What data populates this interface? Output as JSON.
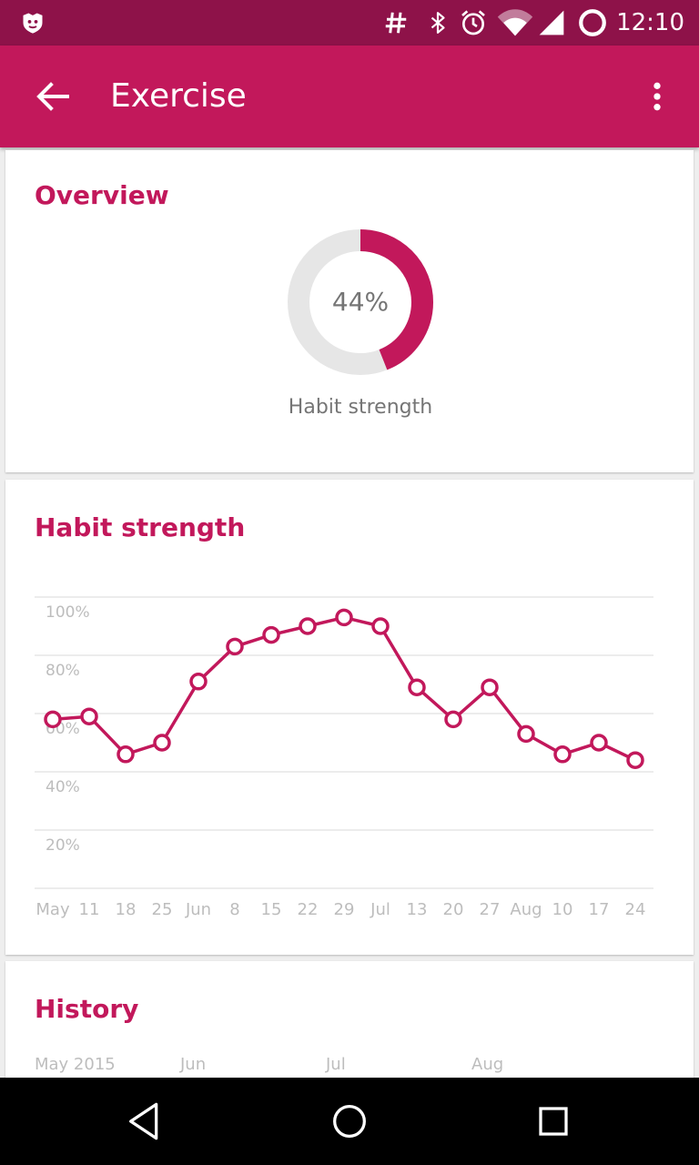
{
  "status_bar": {
    "time": "12:10",
    "icons": [
      "app-notification-icon",
      "hashtag-icon",
      "bluetooth-icon",
      "alarm-icon",
      "wifi-icon",
      "signal-icon",
      "battery-icon"
    ]
  },
  "app_bar": {
    "title": "Exercise",
    "back_icon": "arrow-back-icon",
    "menu_icon": "more-vert-icon"
  },
  "overview": {
    "title": "Overview",
    "score_value": 44,
    "score_text": "44%",
    "score_label": "Habit strength"
  },
  "habit_strength": {
    "title": "Habit strength"
  },
  "history": {
    "title": "History",
    "months": [
      "May 2015",
      "Jun",
      "Jul",
      "Aug"
    ]
  },
  "colors": {
    "accent": "#c2185b",
    "status_bar": "#8e1249",
    "ring_track": "#e6e6e6",
    "grid": "#e5e5e5",
    "axis_text": "#bdbdbd"
  },
  "chart_data": {
    "type": "line",
    "y_tick_labels": [
      "100%",
      "80%",
      "60%",
      "40%",
      "20%"
    ],
    "x_tick_labels": [
      "May",
      "11",
      "18",
      "25",
      "Jun",
      "8",
      "15",
      "22",
      "29",
      "Jul",
      "13",
      "20",
      "27",
      "Aug",
      "10",
      "17",
      "24"
    ],
    "x": [
      "May 4",
      "May 11",
      "May 18",
      "May 25",
      "Jun 1",
      "Jun 8",
      "Jun 15",
      "Jun 22",
      "Jun 29",
      "Jul 6",
      "Jul 13",
      "Jul 20",
      "Jul 27",
      "Aug 3",
      "Aug 10",
      "Aug 17",
      "Aug 24"
    ],
    "series": [
      {
        "values": [
          58,
          59,
          46,
          50,
          71,
          83,
          87,
          90,
          93,
          90,
          69,
          58,
          69,
          53,
          46,
          50,
          44
        ]
      }
    ],
    "ylim": [
      0,
      100
    ],
    "grid": true
  }
}
